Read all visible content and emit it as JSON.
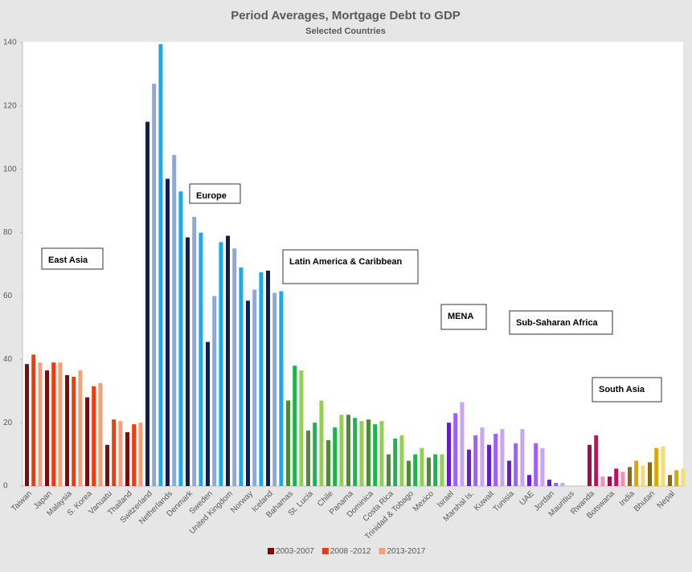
{
  "chart_data": {
    "type": "bar",
    "title": "Period Averages, Mortgage Debt to GDP",
    "subtitle": "Selected Countries",
    "ylim": [
      0,
      140
    ],
    "yticks": [
      0,
      20,
      40,
      60,
      80,
      100,
      120,
      140
    ],
    "regions": [
      {
        "label": "East Asia",
        "colors": [
          "#7a0c0c",
          "#f03c0c",
          "#f4a07a"
        ],
        "categories": [
          "Taiwan",
          "Japan",
          "Malaysia",
          "S. Korea",
          "Vanuatu",
          "Thailand"
        ]
      },
      {
        "label": "Europe",
        "colors": [
          "#0e1f4f",
          "#8fa9d6",
          "#19aaee"
        ],
        "categories": [
          "Switzerland",
          "Netherlands",
          "Denmark",
          "Sweden",
          "United Kingdom",
          "Norway",
          "Iceland"
        ]
      },
      {
        "label": "Latin America & Caribbean",
        "colors": [
          "#4e8a3a",
          "#1db34f",
          "#92d050"
        ],
        "categories": [
          "Bahamas",
          "St. Lucia",
          "Chile",
          "Panama",
          "Dominica",
          "Costa Rica",
          "Trinidad & Tobago",
          "Mexico"
        ]
      },
      {
        "label": "MENA",
        "colors": [
          "#6a1ccc",
          "#a05ff5",
          "#c9a6f5"
        ],
        "categories": [
          "Israel",
          "Marshal Is.",
          "Kuwait",
          "Tunisia",
          "UAE",
          "Jordan",
          "Mauritius"
        ]
      },
      {
        "label": "Sub-Saharan Africa",
        "colors": [
          "#9e0e4c",
          "#c8105a",
          "#f48fb1"
        ],
        "categories": [
          "Rwanda",
          "Botswana"
        ]
      },
      {
        "label": "South Asia",
        "colors": [
          "#8a6a10",
          "#d8a800",
          "#f5dc78"
        ],
        "categories": [
          "India",
          "Bhutan",
          "Nepal"
        ]
      }
    ],
    "series": [
      {
        "name": "2003-2007",
        "color": "#7a0c0c",
        "values": [
          38.5,
          36.5,
          35,
          28,
          13,
          17,
          115,
          97,
          78.5,
          45.5,
          79,
          58.5,
          68,
          27,
          17.5,
          14.5,
          22.5,
          21,
          10,
          8,
          9,
          20,
          11.5,
          13,
          8,
          3.5,
          2,
          0,
          13,
          3,
          6,
          7.5,
          3.5
        ]
      },
      {
        "name": "2008 -2012",
        "color": "#f03c0c",
        "values": [
          41.5,
          39,
          34.5,
          31.5,
          21,
          19.5,
          127,
          104.5,
          85,
          60,
          75,
          62,
          61,
          38,
          20,
          18.5,
          21.5,
          19.5,
          15,
          10,
          10,
          23,
          16,
          16.5,
          13.5,
          13.5,
          1,
          0,
          16,
          5.5,
          8,
          12,
          5
        ]
      },
      {
        "name": "2013-2017",
        "color": "#f4a07a",
        "values": [
          39,
          39,
          36.5,
          32.5,
          20.5,
          20,
          139.5,
          93,
          80,
          77,
          69,
          67.5,
          61.5,
          36.5,
          27,
          22.5,
          20.5,
          20.5,
          16,
          12,
          10,
          26.5,
          18.5,
          18,
          18,
          12,
          1,
          0,
          3,
          4.5,
          6.5,
          12.5,
          5.5
        ]
      }
    ]
  }
}
